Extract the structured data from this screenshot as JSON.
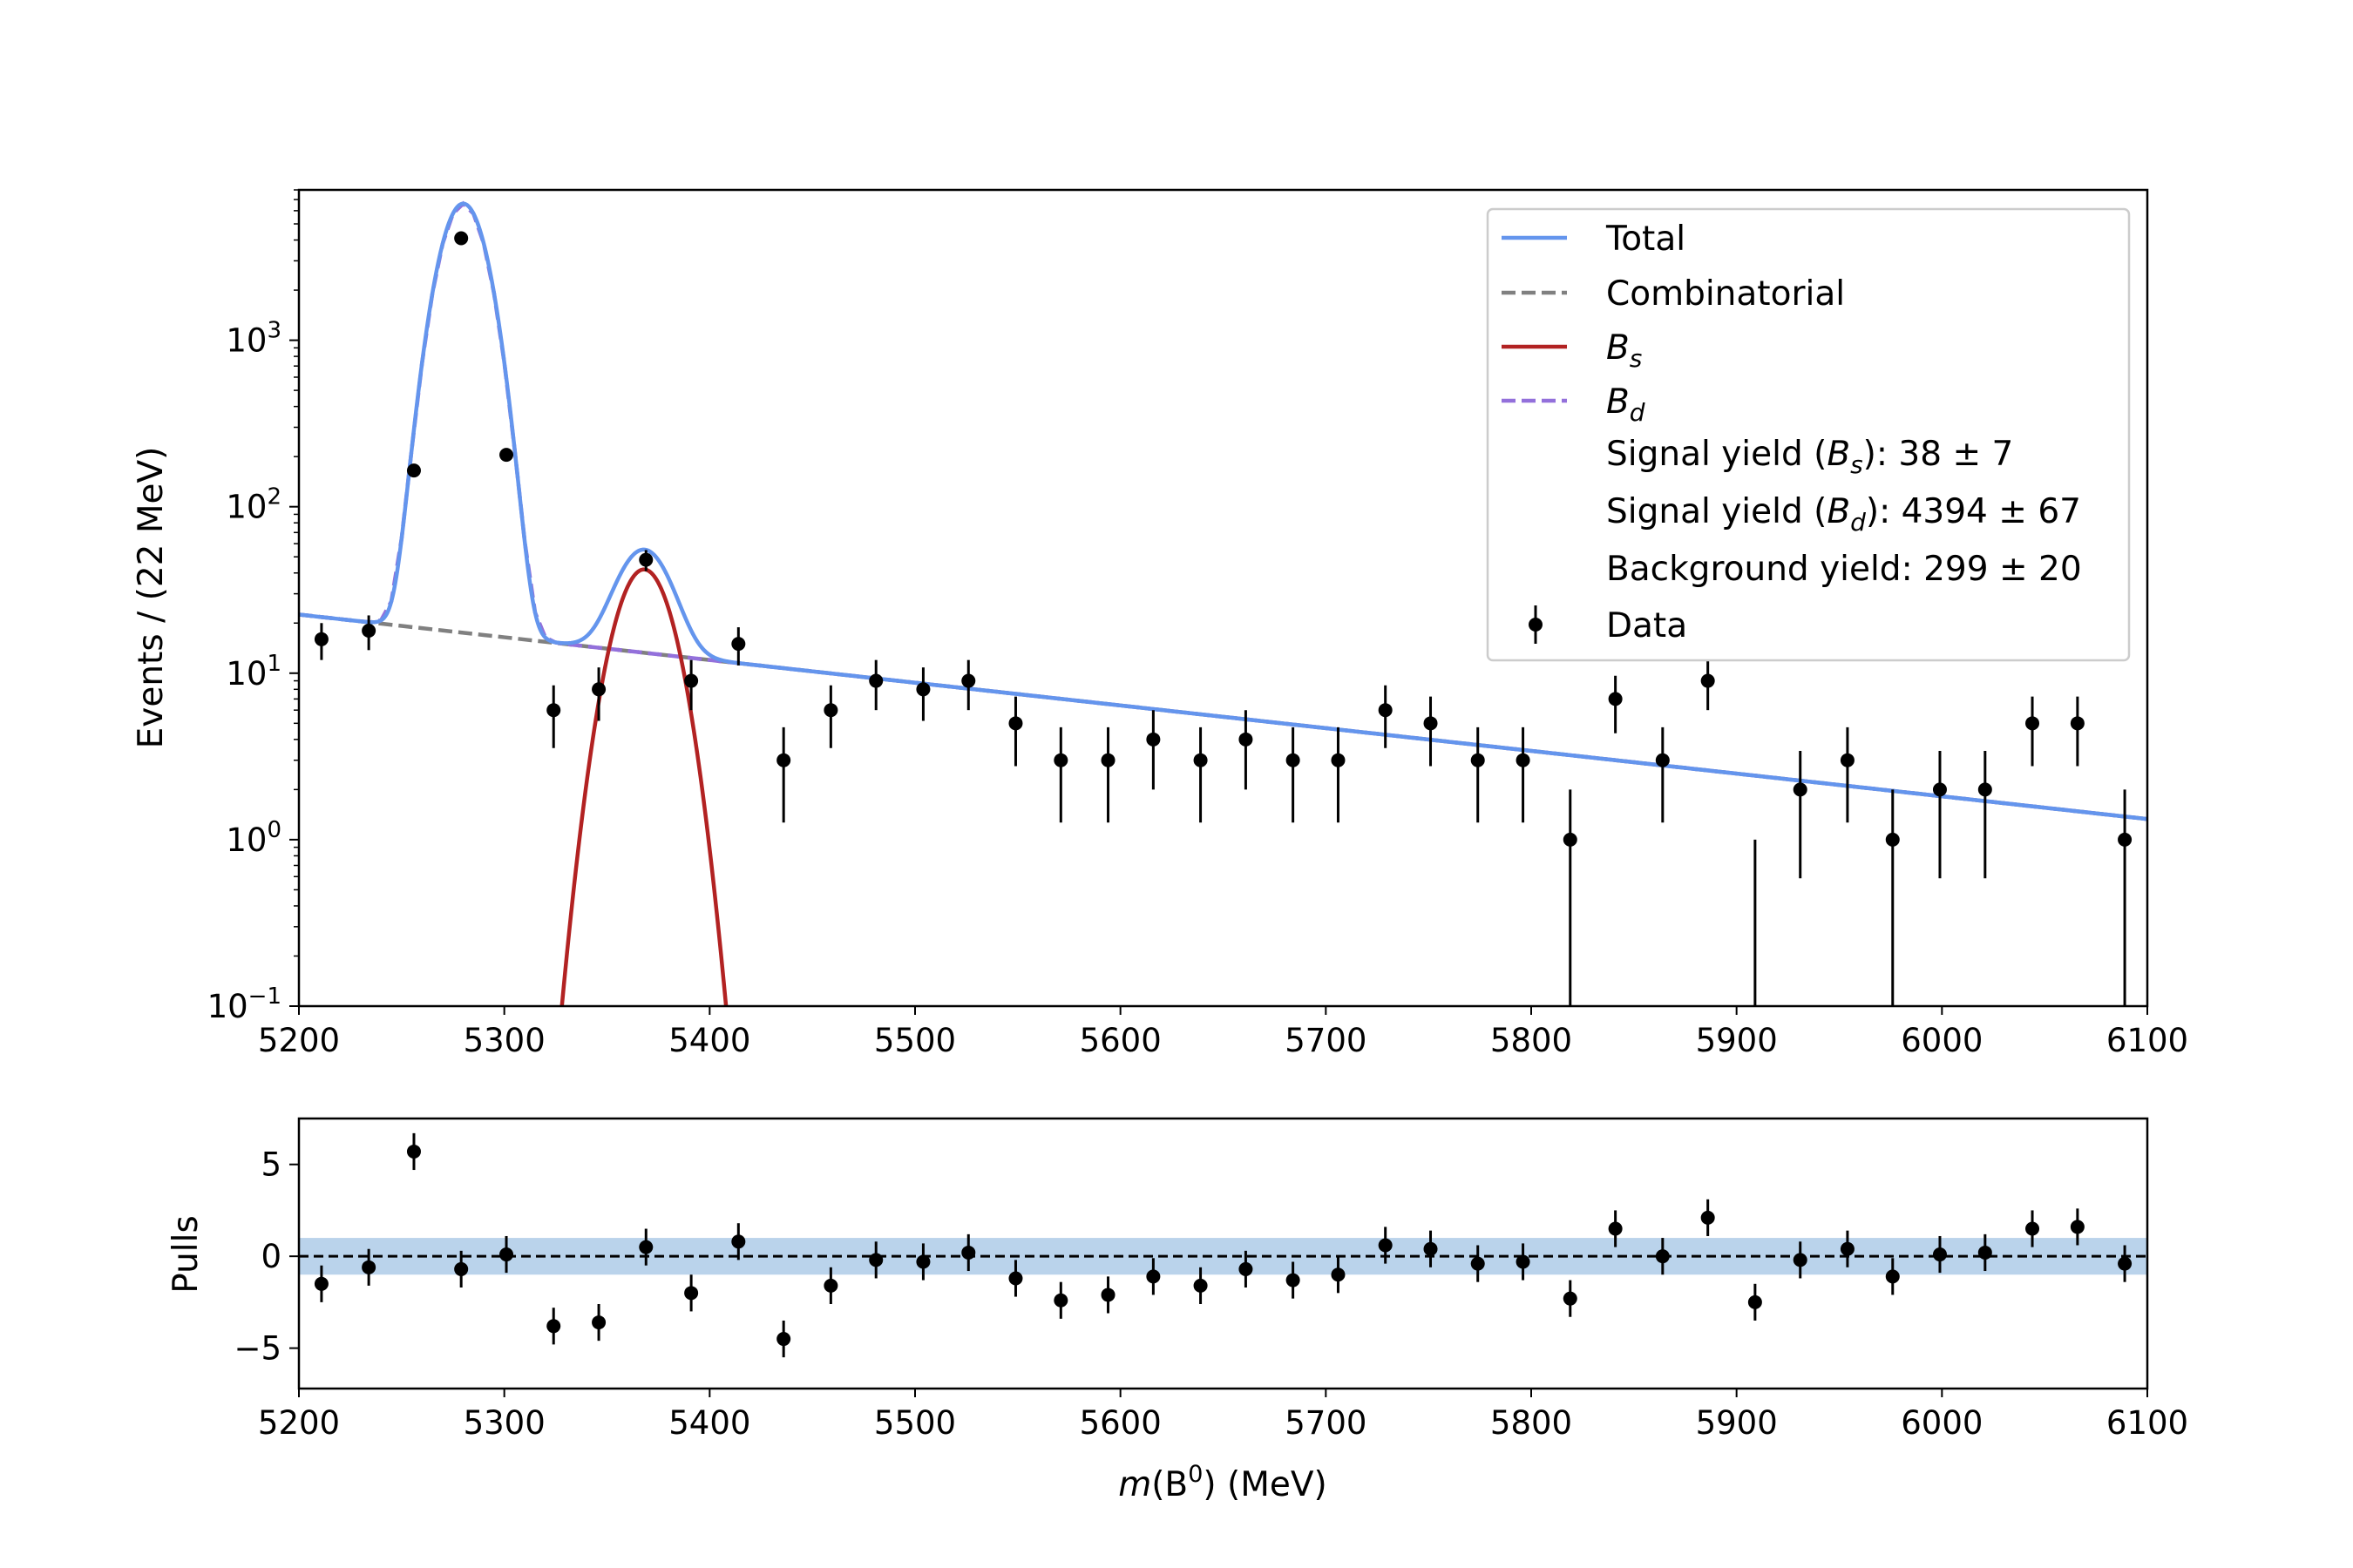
{
  "chart_data": [
    {
      "type": "scatter",
      "panel": "fit",
      "ylabel": "Events / (22 MeV)",
      "xlabel": "",
      "xlim": [
        5200,
        6100
      ],
      "ylim": [
        0.1,
        8000
      ],
      "yscale": "log",
      "x_ticks": [
        "5200",
        "5300",
        "5400",
        "5500",
        "5600",
        "5700",
        "5800",
        "5900",
        "6000",
        "6100"
      ],
      "y_ticks": [
        {
          "value": 0.1,
          "base": "10",
          "exp": "−1"
        },
        {
          "value": 1,
          "base": "10",
          "exp": "0"
        },
        {
          "value": 10,
          "base": "10",
          "exp": "1"
        },
        {
          "value": 100,
          "base": "10",
          "exp": "2"
        },
        {
          "value": 1000,
          "base": "10",
          "exp": "3"
        }
      ],
      "legend_position": "top-right",
      "legend": {
        "total": "Total",
        "combinatorial": "Combinatorial",
        "bs_base": "B",
        "bs_sub": "s",
        "bd_base": "B",
        "bd_sub": "d",
        "bs_yield": {
          "pre": "Signal yield (",
          "base": "B",
          "sub": "s",
          "post": "): 38 ± 7"
        },
        "bd_yield": {
          "pre": "Signal yield (",
          "base": "B",
          "sub": "d",
          "post": "): 4394 ± 67"
        },
        "bkg_yield": "Background yield: 299 ± 20",
        "data": "Data"
      },
      "colors": {
        "total": "#6495ed",
        "combinatorial": "#808080",
        "bs": "#b22222",
        "bd": "#9370db",
        "data": "#000000"
      },
      "curves": {
        "combinatorial": {
          "x0": 5200,
          "y0": 22.5,
          "x1": 6100,
          "y1": 1.33
        },
        "bd_peak": {
          "mu": 5280,
          "sigma": 9.5,
          "amp": 6600
        },
        "bs_peak": {
          "mu": 5368,
          "sigma": 11.5,
          "amp": 42
        }
      },
      "data": {
        "x": [
          5211,
          5234,
          5256,
          5279,
          5301,
          5324,
          5346,
          5369,
          5391,
          5414,
          5436,
          5459,
          5481,
          5504,
          5526,
          5549,
          5571,
          5594,
          5616,
          5639,
          5661,
          5684,
          5706,
          5729,
          5751,
          5774,
          5796,
          5819,
          5841,
          5864,
          5886,
          5909,
          5931,
          5954,
          5976,
          5999,
          6021,
          6044,
          6066,
          6089
        ],
        "y": [
          16,
          18,
          165,
          4100,
          205,
          6,
          8,
          48,
          9,
          15,
          3,
          6,
          9,
          8,
          9,
          5,
          3,
          3,
          4,
          3,
          4,
          3,
          3,
          6,
          5,
          3,
          3,
          1,
          7,
          3,
          9,
          0,
          2,
          3,
          1,
          2,
          2,
          5,
          5,
          1
        ]
      }
    },
    {
      "type": "scatter",
      "panel": "pulls",
      "xlabel_parts": {
        "pre": "m",
        "mid": "(B",
        "sup": "0",
        "post": ") (MeV)"
      },
      "ylabel": "Pulls",
      "xlim": [
        5200,
        6100
      ],
      "ylim": [
        -7.2,
        7.5
      ],
      "x_ticks": [
        "5200",
        "5300",
        "5400",
        "5500",
        "5600",
        "5700",
        "5800",
        "5900",
        "6000",
        "6100"
      ],
      "y_ticks": [
        {
          "value": 5,
          "label": "5"
        },
        {
          "value": 0,
          "label": "0"
        },
        {
          "value": -5,
          "label": "−5"
        }
      ],
      "band": [
        -1,
        1
      ],
      "band_color": "#a9c8e6",
      "data": {
        "x": [
          5211,
          5234,
          5256,
          5279,
          5301,
          5324,
          5346,
          5369,
          5391,
          5414,
          5436,
          5459,
          5481,
          5504,
          5526,
          5549,
          5571,
          5594,
          5616,
          5639,
          5661,
          5684,
          5706,
          5729,
          5751,
          5774,
          5796,
          5819,
          5841,
          5864,
          5886,
          5909,
          5931,
          5954,
          5976,
          5999,
          6021,
          6044,
          6066,
          6089
        ],
        "y": [
          -1.5,
          -0.6,
          5.7,
          -0.7,
          0.1,
          -3.8,
          -3.6,
          0.5,
          -2.0,
          0.8,
          -4.5,
          -1.6,
          -0.2,
          -0.3,
          0.2,
          -1.2,
          -2.4,
          -2.1,
          -1.1,
          -1.6,
          -0.7,
          -1.3,
          -1.0,
          0.6,
          0.4,
          -0.4,
          -0.3,
          -2.3,
          1.5,
          0.0,
          2.1,
          -2.5,
          -0.2,
          0.4,
          -1.1,
          0.1,
          0.2,
          1.5,
          1.6,
          -0.4
        ]
      }
    }
  ]
}
